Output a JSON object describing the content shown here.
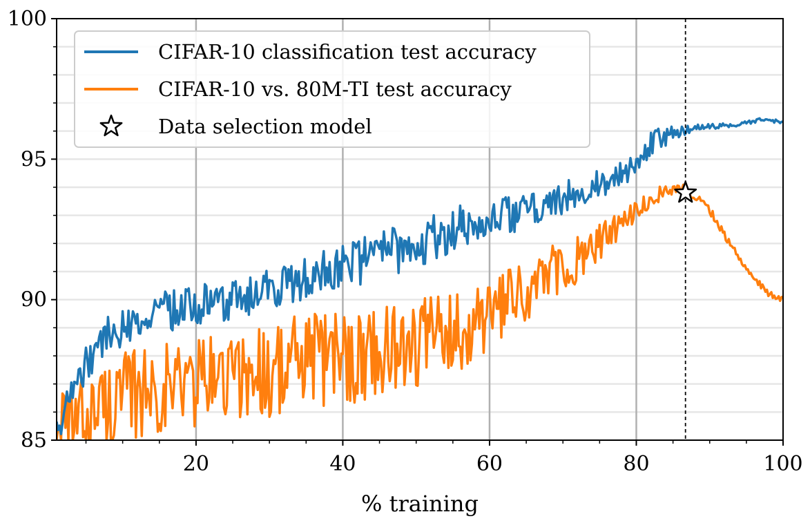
{
  "chart_data": {
    "type": "line",
    "title": "",
    "xlabel": "% training",
    "ylabel": "",
    "xlim": [
      1,
      100
    ],
    "ylim": [
      85,
      100
    ],
    "xticks": [
      20,
      40,
      60,
      80,
      100
    ],
    "yticks": [
      85,
      90,
      95,
      100
    ],
    "x_tick_labels": [
      "20",
      "40",
      "60",
      "80",
      "100"
    ],
    "y_tick_labels": [
      "85",
      "90",
      "95",
      "100"
    ],
    "grid": {
      "major_x": true,
      "minor_y": true,
      "major_x_color": "#b0b0b0",
      "minor_y_color": "#e6e6e6",
      "minor_y_step": 1
    },
    "legend_position": "top-left",
    "series": [
      {
        "name": "CIFAR-10 classification test accuracy",
        "color": "#1f77b4",
        "anchors": [
          [
            1,
            85.2
          ],
          [
            2,
            86.2
          ],
          [
            4,
            87.3
          ],
          [
            6,
            88.1
          ],
          [
            8,
            88.8
          ],
          [
            10,
            89.0
          ],
          [
            13,
            89.3
          ],
          [
            16,
            89.6
          ],
          [
            20,
            89.8
          ],
          [
            24,
            90.0
          ],
          [
            28,
            90.1
          ],
          [
            32,
            90.5
          ],
          [
            36,
            90.8
          ],
          [
            40,
            91.1
          ],
          [
            44,
            91.5
          ],
          [
            48,
            91.8
          ],
          [
            52,
            92.2
          ],
          [
            56,
            92.6
          ],
          [
            60,
            92.9
          ],
          [
            64,
            93.1
          ],
          [
            68,
            93.4
          ],
          [
            72,
            93.8
          ],
          [
            76,
            94.2
          ],
          [
            79,
            94.6
          ],
          [
            81,
            95.3
          ],
          [
            83,
            95.7
          ],
          [
            85,
            95.9
          ],
          [
            87,
            96.05
          ],
          [
            89,
            96.15
          ],
          [
            92,
            96.2
          ],
          [
            95,
            96.3
          ],
          [
            97.5,
            96.4
          ],
          [
            100,
            96.3
          ]
        ],
        "noise": [
          [
            1,
            0.6
          ],
          [
            10,
            0.7
          ],
          [
            30,
            0.8
          ],
          [
            50,
            0.9
          ],
          [
            60,
            0.7
          ],
          [
            70,
            0.6
          ],
          [
            78,
            0.45
          ],
          [
            82,
            0.45
          ],
          [
            86,
            0.25
          ],
          [
            90,
            0.1
          ],
          [
            100,
            0.07
          ]
        ]
      },
      {
        "name": "CIFAR-10 vs. 80M-TI test accuracy",
        "color": "#ff7f0e",
        "anchors": [
          [
            1,
            85.0
          ],
          [
            3,
            85.5
          ],
          [
            6,
            86.1
          ],
          [
            10,
            86.5
          ],
          [
            15,
            86.9
          ],
          [
            20,
            87.1
          ],
          [
            25,
            87.3
          ],
          [
            30,
            87.5
          ],
          [
            35,
            87.8
          ],
          [
            40,
            88.0
          ],
          [
            45,
            88.2
          ],
          [
            50,
            88.5
          ],
          [
            55,
            88.9
          ],
          [
            60,
            89.4
          ],
          [
            64,
            90.0
          ],
          [
            68,
            90.8
          ],
          [
            72,
            91.4
          ],
          [
            75,
            92.0
          ],
          [
            78,
            92.7
          ],
          [
            81,
            93.4
          ],
          [
            84,
            93.9
          ],
          [
            86.2,
            93.95
          ],
          [
            88,
            93.7
          ],
          [
            90,
            93.2
          ],
          [
            92,
            92.3
          ],
          [
            94,
            91.5
          ],
          [
            96,
            90.8
          ],
          [
            98,
            90.2
          ],
          [
            100,
            90.0
          ]
        ],
        "noise": [
          [
            1,
            1.5
          ],
          [
            20,
            1.7
          ],
          [
            40,
            1.8
          ],
          [
            50,
            1.6
          ],
          [
            60,
            1.4
          ],
          [
            70,
            1.0
          ],
          [
            75,
            0.7
          ],
          [
            80,
            0.35
          ],
          [
            86,
            0.2
          ],
          [
            90,
            0.15
          ],
          [
            100,
            0.1
          ]
        ]
      }
    ],
    "markers": [
      {
        "name": "Data selection model",
        "x": 86.7,
        "y": 93.8,
        "shape": "star",
        "fill": "#ffffff",
        "stroke": "#000000"
      }
    ],
    "vlines": [
      {
        "x": 86.7,
        "style": "dashed",
        "color": "#000000"
      }
    ]
  }
}
